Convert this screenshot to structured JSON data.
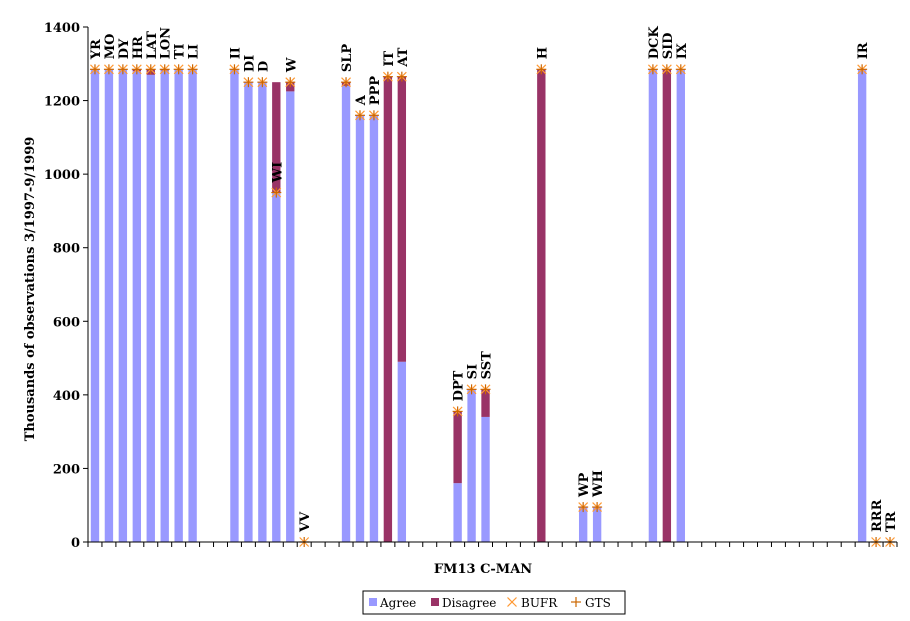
{
  "chart_data": {
    "type": "bar",
    "stacked": true,
    "xlabel": "FM13 C-MAN",
    "ylabel": "Thousands of observations 3/1997-9/1999",
    "ylim": [
      0,
      1400
    ],
    "yticks": [
      0,
      200,
      400,
      600,
      800,
      1000,
      1200,
      1400
    ],
    "grid": false,
    "legend": "bottom",
    "colors": {
      "agree": "#9999ff",
      "disagree": "#993366",
      "bufr": "#ff9933",
      "gts": "#cc6600"
    },
    "legend_labels": {
      "agree": "Agree",
      "disagree": "Disagree",
      "bufr": "BUFR",
      "gts": "GTS"
    },
    "slots": 58,
    "bars": [
      {
        "slot": 0,
        "label": "YR",
        "agree": 1285,
        "disagree": 0,
        "bufr": 1285,
        "gts": 1285
      },
      {
        "slot": 1,
        "label": "MO",
        "agree": 1285,
        "disagree": 0,
        "bufr": 1285,
        "gts": 1285
      },
      {
        "slot": 2,
        "label": "DY",
        "agree": 1285,
        "disagree": 0,
        "bufr": 1285,
        "gts": 1285
      },
      {
        "slot": 3,
        "label": "HR",
        "agree": 1280,
        "disagree": 5,
        "bufr": 1285,
        "gts": 1285
      },
      {
        "slot": 4,
        "label": "LAT",
        "agree": 1270,
        "disagree": 15,
        "bufr": 1285,
        "gts": 1285
      },
      {
        "slot": 5,
        "label": "LON",
        "agree": 1282,
        "disagree": 3,
        "bufr": 1285,
        "gts": 1285
      },
      {
        "slot": 6,
        "label": "TI",
        "agree": 1285,
        "disagree": 0,
        "bufr": 1285,
        "gts": 1285
      },
      {
        "slot": 7,
        "label": "LI",
        "agree": 1285,
        "disagree": 0,
        "bufr": 1285,
        "gts": 1285
      },
      {
        "slot": 10,
        "label": "II",
        "agree": 1285,
        "disagree": 0,
        "bufr": 1285,
        "gts": 1285
      },
      {
        "slot": 11,
        "label": "DI",
        "agree": 1250,
        "disagree": 0,
        "bufr": 1250,
        "gts": 1250
      },
      {
        "slot": 12,
        "label": "D",
        "agree": 1250,
        "disagree": 0,
        "bufr": 1250,
        "gts": 1250
      },
      {
        "slot": 13,
        "label": "WI",
        "agree": 950,
        "disagree": 300,
        "bufr": 950,
        "gts": 950
      },
      {
        "slot": 14,
        "label": "W",
        "agree": 1225,
        "disagree": 25,
        "bufr": 1250,
        "gts": 1250
      },
      {
        "slot": 15,
        "label": "VV",
        "agree": 0,
        "disagree": 0,
        "bufr": 0,
        "gts": 0
      },
      {
        "slot": 18,
        "label": "SLP",
        "agree": 1240,
        "disagree": 10,
        "bufr": 1250,
        "gts": 1250
      },
      {
        "slot": 19,
        "label": "A",
        "agree": 1160,
        "disagree": 0,
        "bufr": 1160,
        "gts": 1160
      },
      {
        "slot": 20,
        "label": "PPP",
        "agree": 1160,
        "disagree": 0,
        "bufr": 1160,
        "gts": 1160
      },
      {
        "slot": 21,
        "label": "IT",
        "agree": 0,
        "disagree": 1265,
        "bufr": 1265,
        "gts": 1265
      },
      {
        "slot": 22,
        "label": "AT",
        "agree": 490,
        "disagree": 775,
        "bufr": 1265,
        "gts": 1265
      },
      {
        "slot": 26,
        "label": "DPT",
        "agree": 160,
        "disagree": 195,
        "bufr": 355,
        "gts": 355
      },
      {
        "slot": 27,
        "label": "SI",
        "agree": 415,
        "disagree": 0,
        "bufr": 415,
        "gts": 415
      },
      {
        "slot": 28,
        "label": "SST",
        "agree": 340,
        "disagree": 75,
        "bufr": 415,
        "gts": 415
      },
      {
        "slot": 32,
        "label": "H",
        "agree": 0,
        "disagree": 1285,
        "bufr": 1285,
        "gts": 1285
      },
      {
        "slot": 35,
        "label": "WP",
        "agree": 95,
        "disagree": 0,
        "bufr": 95,
        "gts": 95
      },
      {
        "slot": 36,
        "label": "WH",
        "agree": 95,
        "disagree": 0,
        "bufr": 95,
        "gts": 95
      },
      {
        "slot": 40,
        "label": "DCK",
        "agree": 1285,
        "disagree": 0,
        "bufr": 1285,
        "gts": 1285
      },
      {
        "slot": 41,
        "label": "SID",
        "agree": 0,
        "disagree": 1285,
        "bufr": 1285,
        "gts": 1285
      },
      {
        "slot": 42,
        "label": "IX",
        "agree": 1285,
        "disagree": 0,
        "bufr": 1285,
        "gts": 1285
      },
      {
        "slot": 55,
        "label": "IR",
        "agree": 1285,
        "disagree": 0,
        "bufr": 1285,
        "gts": 1285
      },
      {
        "slot": 56,
        "label": "RRR",
        "agree": 0,
        "disagree": 0,
        "bufr": 0,
        "gts": 0
      },
      {
        "slot": 57,
        "label": "TR",
        "agree": 0,
        "disagree": 0,
        "bufr": 0,
        "gts": 0
      }
    ]
  }
}
